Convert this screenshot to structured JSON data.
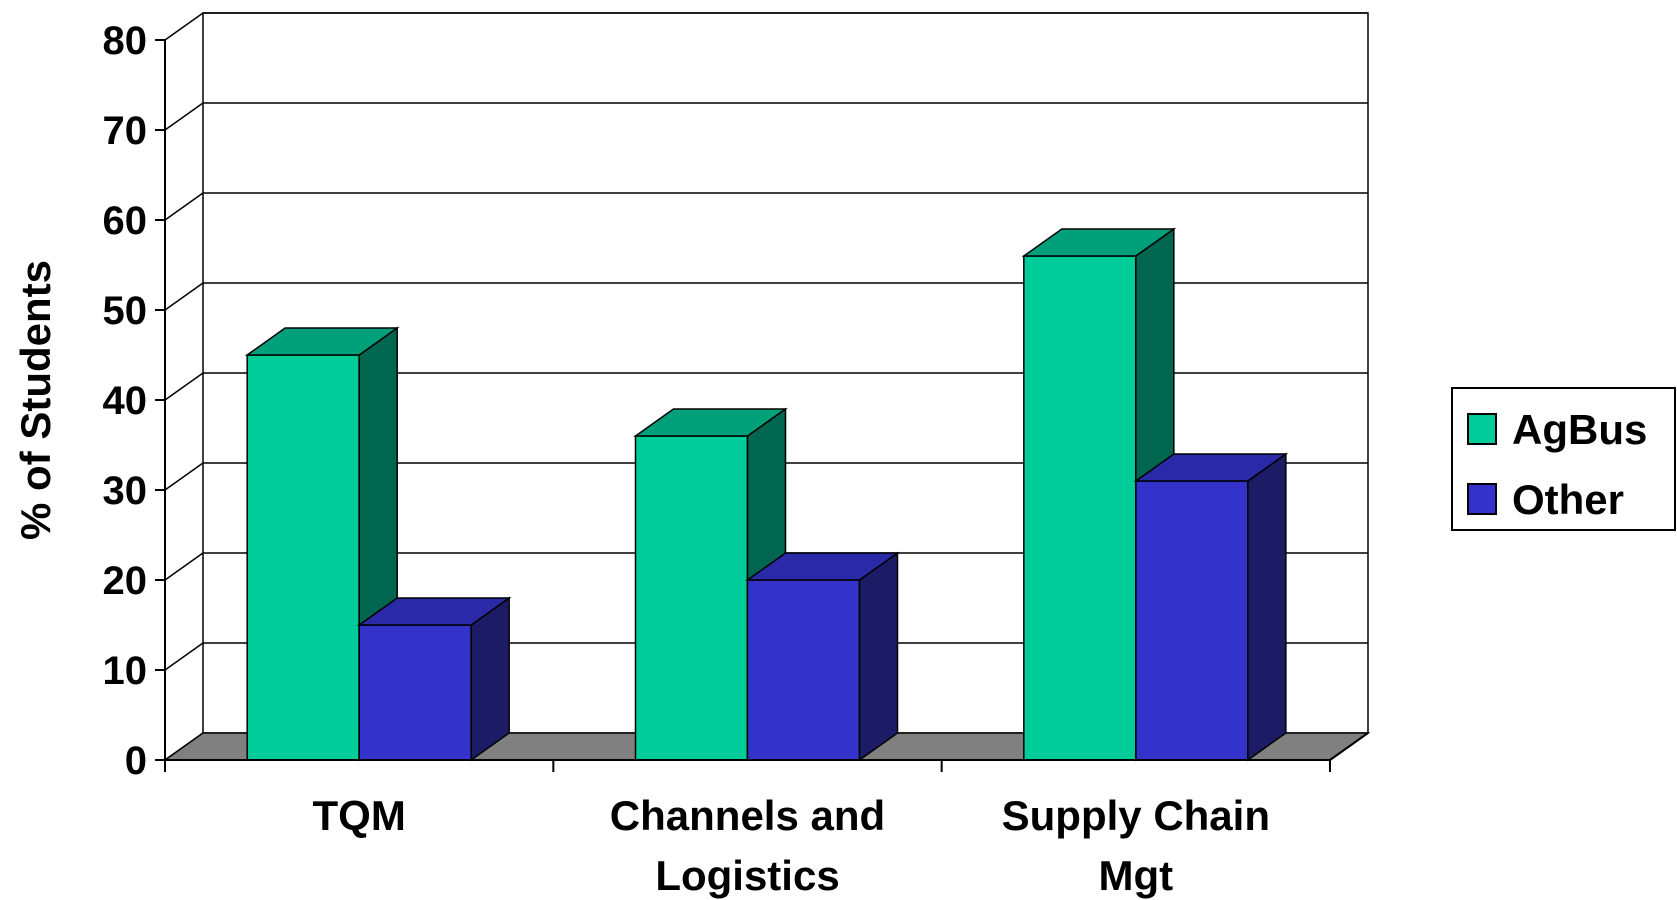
{
  "chart_data": {
    "type": "bar",
    "style": "3d-clustered",
    "categories": [
      [
        "TQM"
      ],
      [
        "Channels and",
        "Logistics"
      ],
      [
        "Supply Chain",
        "Mgt"
      ]
    ],
    "series": [
      {
        "name": "AgBus",
        "values": [
          45,
          36,
          56
        ],
        "color": "#00CC99",
        "side_color": "#006650",
        "top_color": "#00A07A"
      },
      {
        "name": "Other",
        "values": [
          15,
          20,
          31
        ],
        "color": "#3333CC",
        "side_color": "#1C1C66",
        "top_color": "#2A2AA8"
      }
    ],
    "ylabel": "% of Students",
    "xlabel": "",
    "ylim": [
      0,
      80
    ],
    "yticks": [
      0,
      10,
      20,
      30,
      40,
      50,
      60,
      70,
      80
    ],
    "grid": true,
    "legend": "right",
    "floor_color": "#808080"
  }
}
